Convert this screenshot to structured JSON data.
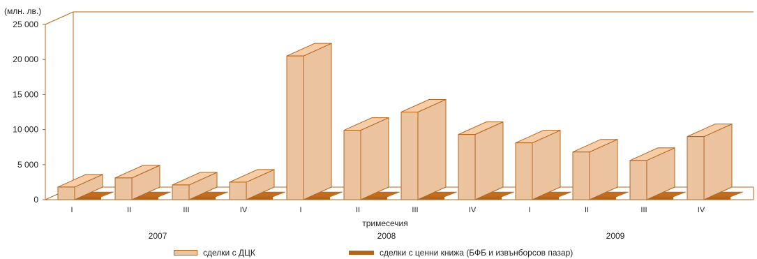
{
  "chart_data": {
    "type": "bar",
    "title": "",
    "unit_label": "(млн. лв.)",
    "xlabel": "тримесечия",
    "ylabel": "",
    "ylim": [
      0,
      25000
    ],
    "yticks": [
      0,
      5000,
      10000,
      15000,
      20000,
      25000
    ],
    "ytick_labels": [
      "0",
      "5 000",
      "10 000",
      "15 000",
      "20 000",
      "25 000"
    ],
    "categories": [
      "I",
      "II",
      "III",
      "IV",
      "I",
      "II",
      "III",
      "IV",
      "I",
      "II",
      "III",
      "IV"
    ],
    "years": [
      {
        "label": "2007",
        "quarters": 4
      },
      {
        "label": "2008",
        "quarters": 4
      },
      {
        "label": "2009",
        "quarters": 4
      }
    ],
    "grid": false,
    "style": "3d",
    "legend_position": "bottom",
    "series": [
      {
        "name": "сделки с ДЦК",
        "color": "#ebc39f",
        "values": [
          1800,
          3100,
          2100,
          2500,
          20500,
          9900,
          12500,
          9300,
          8100,
          6800,
          5600,
          9000
        ]
      },
      {
        "name": "сделки с ценни книжа (БФБ и извънборсов пазар)",
        "color": "#b4651c",
        "values": [
          1200,
          1500,
          600,
          600,
          1600,
          600,
          600,
          600,
          1400,
          600,
          600,
          600
        ]
      }
    ]
  }
}
